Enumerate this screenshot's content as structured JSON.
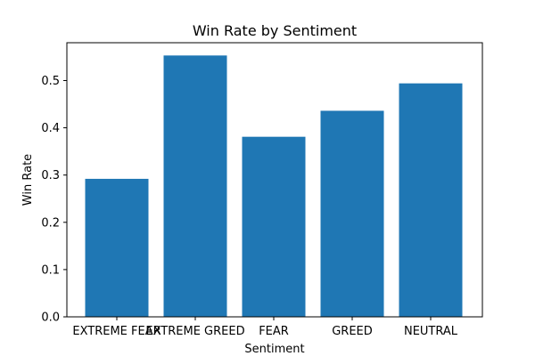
{
  "chart_data": {
    "type": "bar",
    "title": "Win Rate by Sentiment",
    "xlabel": "Sentiment",
    "ylabel": "Win Rate",
    "categories": [
      "EXTREME FEAR",
      "EXTREME GREED",
      "FEAR",
      "GREED",
      "NEUTRAL"
    ],
    "values": [
      0.292,
      0.553,
      0.381,
      0.436,
      0.494
    ],
    "ylim": [
      0,
      0.58
    ],
    "yticks": [
      0.0,
      0.1,
      0.2,
      0.3,
      0.4,
      0.5
    ],
    "ytick_labels": [
      "0.0",
      "0.1",
      "0.2",
      "0.3",
      "0.4",
      "0.5"
    ],
    "bar_color": "#1f77b4",
    "grid": false,
    "legend": "none"
  }
}
